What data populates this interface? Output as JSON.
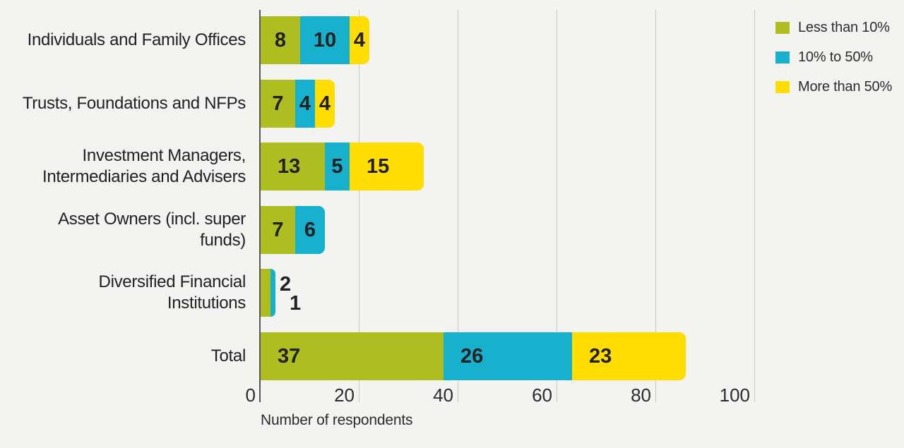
{
  "chart_data": {
    "type": "bar",
    "orientation": "horizontal",
    "stacked": true,
    "title": "",
    "xlabel": "Number of respondents",
    "ylabel": "",
    "xlim": [
      0,
      100
    ],
    "x_ticks": [
      0,
      20,
      40,
      60,
      80,
      100
    ],
    "grid": "vertical",
    "legend_position": "top-right",
    "categories": [
      [
        "Individuals and Family Offices"
      ],
      [
        "Trusts, Foundations and NFPs"
      ],
      [
        "Investment Managers,",
        "Intermediaries and Advisers"
      ],
      [
        "Asset Owners (incl. super",
        "funds)"
      ],
      [
        "Diversified Financial",
        "Institutions"
      ],
      [
        "Total"
      ]
    ],
    "series": [
      {
        "name": "Less than 10%",
        "color": "#aebd1f",
        "values": [
          8,
          7,
          13,
          7,
          2,
          37
        ]
      },
      {
        "name": "10% to 50%",
        "color": "#17b0cd",
        "values": [
          10,
          4,
          5,
          6,
          1,
          26
        ]
      },
      {
        "name": "More than 50%",
        "color": "#ffdd00",
        "values": [
          4,
          4,
          15,
          0,
          0,
          23
        ]
      }
    ],
    "colors": {
      "background": "#f3f3f1",
      "gridline": "#c8c8c6",
      "axis_line": "#57575a",
      "text": "#232022"
    }
  }
}
